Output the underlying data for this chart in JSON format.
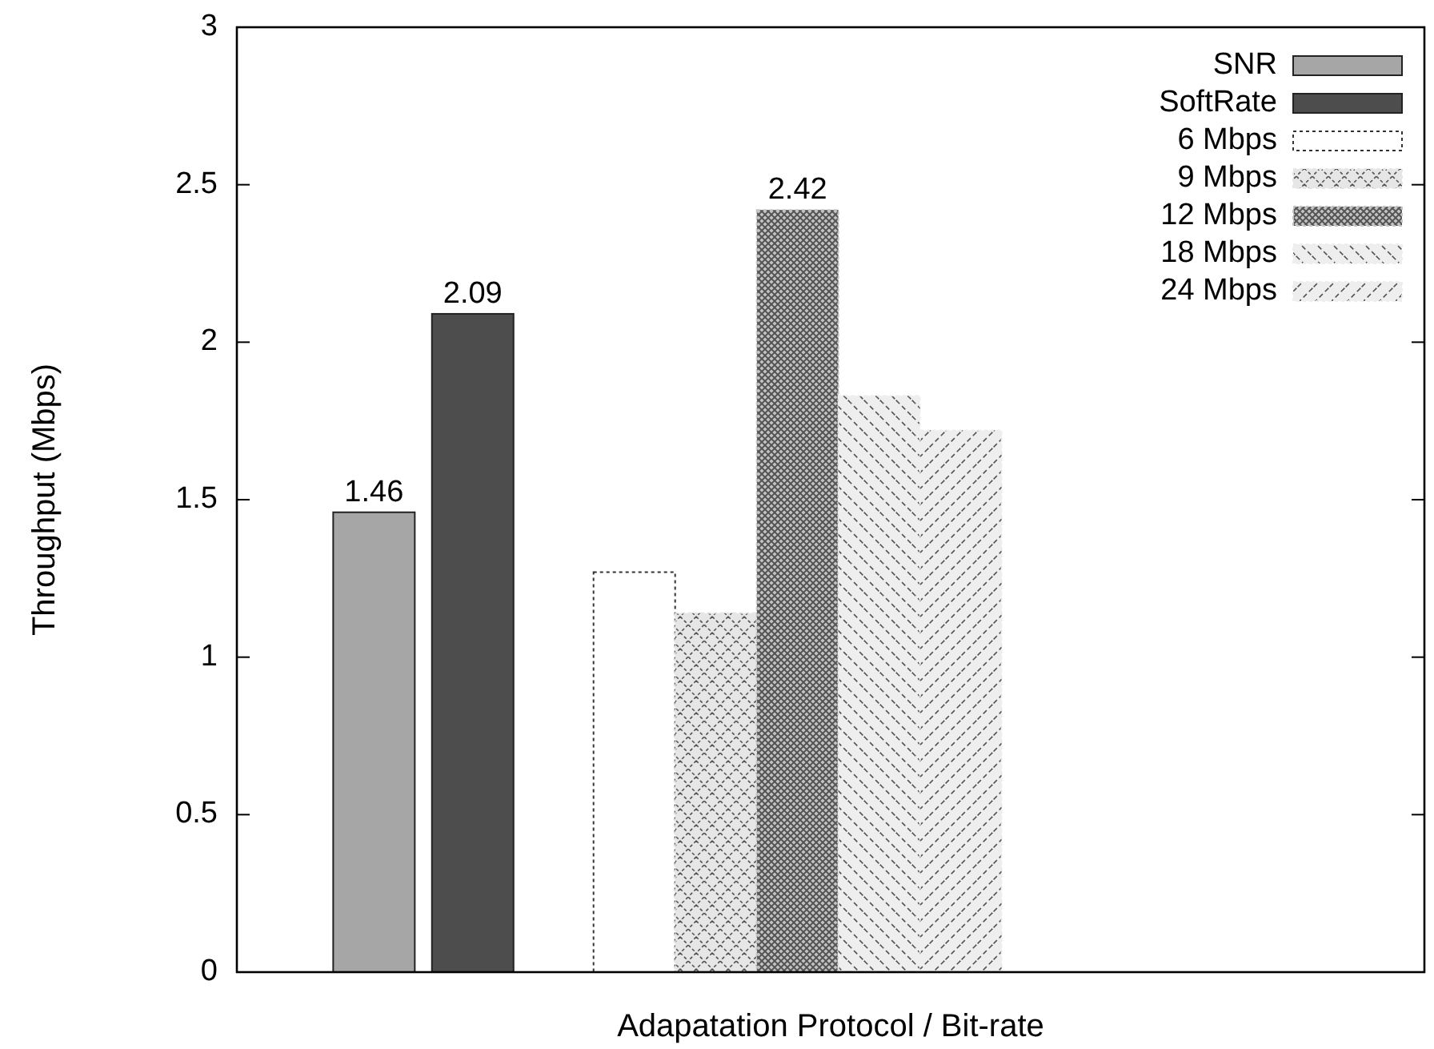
{
  "chart_data": {
    "type": "bar",
    "xlabel": "Adapatation Protocol / Bit-rate",
    "ylabel": "Throughput (Mbps)",
    "categories": [
      null
    ],
    "series": [
      {
        "name": "SNR",
        "color": "#a6a6a6",
        "values": [
          1.46
        ],
        "value_labels": [
          "1.46"
        ]
      },
      {
        "name": "SoftRate",
        "color": "#4d4d4d",
        "values": [
          2.09
        ],
        "value_labels": [
          "2.09"
        ]
      },
      {
        "name": "6 Mbps",
        "color": "#ffffff",
        "values": [
          1.27
        ]
      },
      {
        "name": "9 Mbps",
        "color": "#e6e6e6",
        "values": [
          1.14
        ]
      },
      {
        "name": "12 Mbps",
        "color": "#c4c4c4",
        "values": [
          2.42
        ],
        "value_labels": [
          "2.42"
        ]
      },
      {
        "name": "18 Mbps",
        "color": "#eeeeee",
        "values": [
          1.83
        ]
      },
      {
        "name": "24 Mbps",
        "color": "#eeeeee",
        "values": [
          1.72
        ]
      }
    ],
    "ylim": [
      0,
      3
    ],
    "yticks": [
      0,
      0.5,
      1,
      1.5,
      2,
      2.5,
      3
    ],
    "grid": false,
    "legend": "top right"
  }
}
